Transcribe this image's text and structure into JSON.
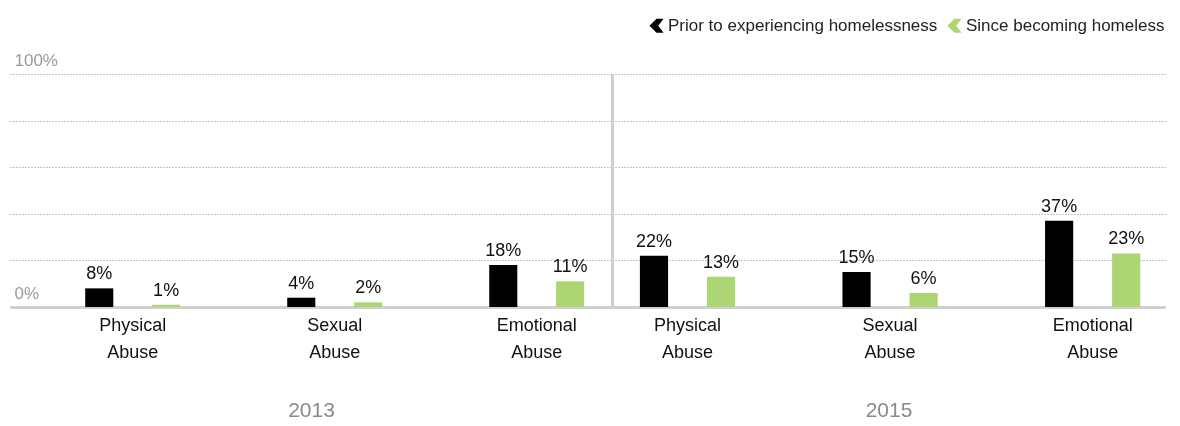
{
  "chart_data": [
    {
      "type": "bar",
      "categories": [
        "Physical Abuse",
        "Sexual Abuse",
        "Emotional Abuse"
      ],
      "xlabel": "2013",
      "series": [
        {
          "color": "#000000",
          "values": [
            8,
            4,
            18
          ],
          "value_labels": [
            "8%",
            "4%",
            "18%"
          ]
        },
        {
          "color": "#acd674",
          "values": [
            1,
            2,
            11
          ],
          "value_labels": [
            "1%",
            "2%",
            "11%"
          ]
        }
      ],
      "ylim": [
        0,
        100
      ],
      "yticks": [
        {
          "value": 0,
          "label": "0%"
        },
        {
          "value": 20,
          "label": null
        },
        {
          "value": 40,
          "label": null
        },
        {
          "value": 60,
          "label": null
        },
        {
          "value": 80,
          "label": null
        },
        {
          "value": 100,
          "label": "100%"
        }
      ],
      "grid": "y"
    },
    {
      "type": "bar",
      "categories": [
        "Physical Abuse",
        "Sexual Abuse",
        "Emotional Abuse"
      ],
      "xlabel": "2015",
      "series": [
        {
          "name": "Prior to experiencing homelessness",
          "color": "#000000",
          "values": [
            22,
            15,
            37
          ],
          "value_labels": [
            "22%",
            "15%",
            "37%"
          ]
        },
        {
          "name": "Since becoming homeless",
          "color": "#acd674",
          "values": [
            13,
            6,
            23
          ],
          "value_labels": [
            "13%",
            "6%",
            "23%"
          ]
        }
      ],
      "ylim": [
        0,
        100
      ],
      "yticks": [
        0,
        20,
        40,
        60,
        80,
        100
      ],
      "grid": "y",
      "legend": "top right",
      "tick_labels": "x"
    }
  ]
}
